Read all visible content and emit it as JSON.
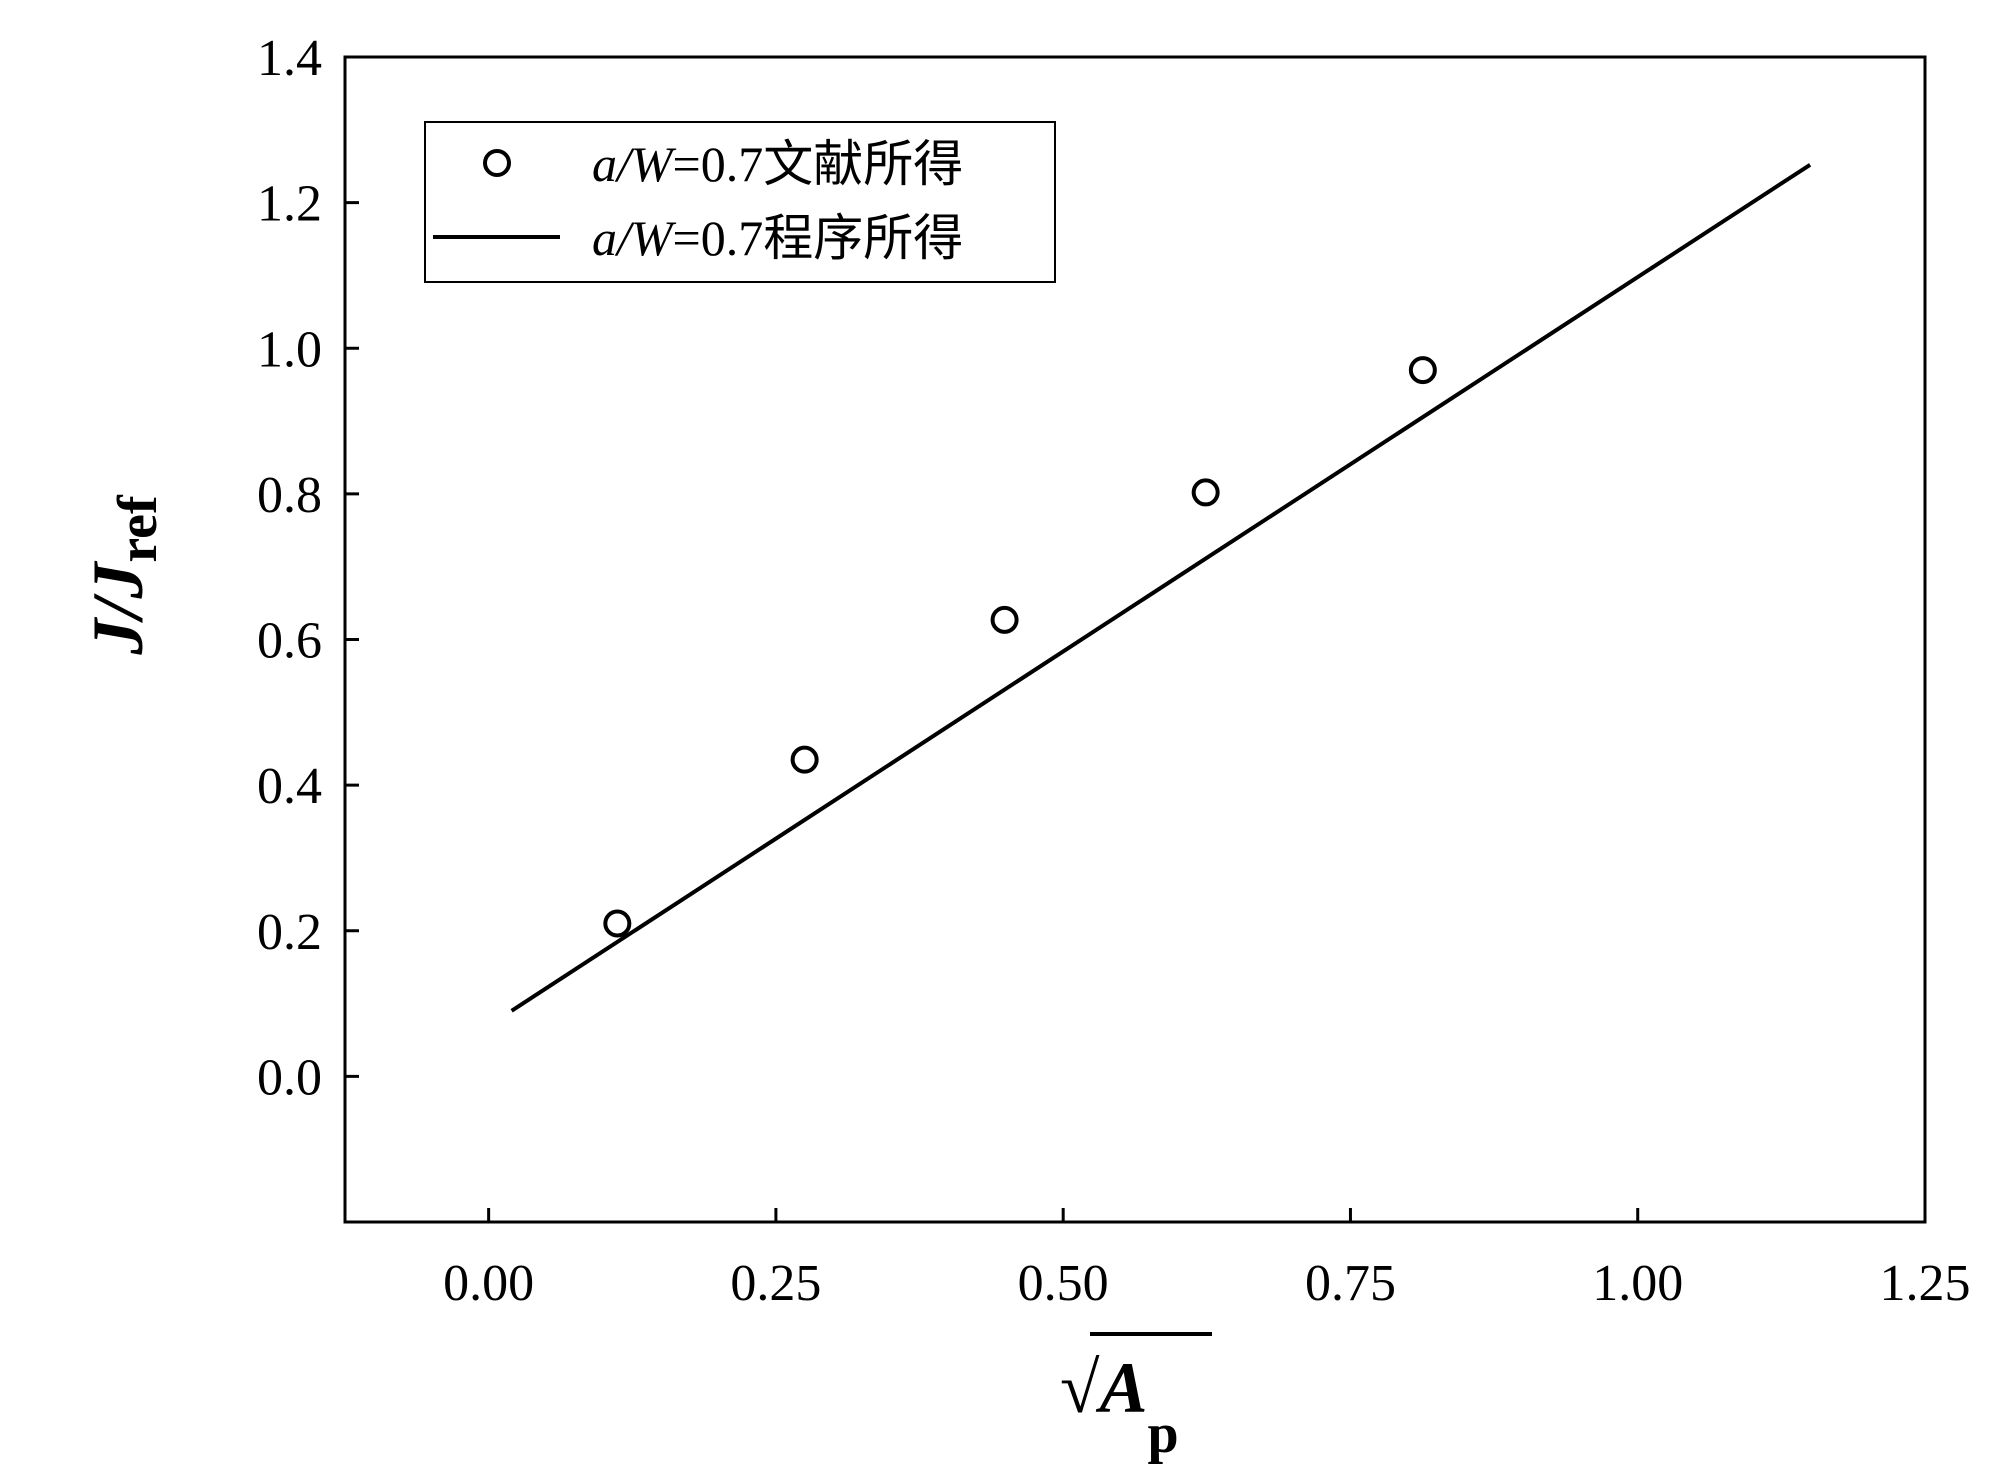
{
  "chart_data": {
    "type": "scatter",
    "xlabel": {
      "prefix": "√",
      "main": "A",
      "sub": "p"
    },
    "ylabel": {
      "main": "J/J",
      "sub": "ref"
    },
    "xlim": [
      -0.125,
      1.25
    ],
    "ylim": [
      -0.2,
      1.4
    ],
    "xticks": [
      "0.00",
      "0.25",
      "0.50",
      "0.75",
      "1.00",
      "1.25"
    ],
    "xtick_values": [
      0.0,
      0.25,
      0.5,
      0.75,
      1.0,
      1.25
    ],
    "yticks": [
      "0.0",
      "0.2",
      "0.4",
      "0.6",
      "0.8",
      "1.0",
      "1.2",
      "1.4"
    ],
    "ytick_values": [
      0.0,
      0.2,
      0.4,
      0.6,
      0.8,
      1.0,
      1.2,
      1.4
    ],
    "legend_position": "top-left",
    "grid": false,
    "series": [
      {
        "name": "a/W=0.7文献所得",
        "name_parts": {
          "italic": "a/W",
          "rest": "=0.7文献所得"
        },
        "kind": "scatter",
        "marker": "open-circle",
        "color": "#000000",
        "x": [
          0.112,
          0.275,
          0.449,
          0.624,
          0.813
        ],
        "y": [
          0.21,
          0.435,
          0.627,
          0.802,
          0.97
        ]
      },
      {
        "name": "a/W=0.7程序所得",
        "name_parts": {
          "italic": "a/W",
          "rest": "=0.7程序所得"
        },
        "kind": "line",
        "color": "#000000",
        "x": [
          0.02,
          1.15
        ],
        "y": [
          0.09,
          1.252
        ]
      }
    ]
  }
}
